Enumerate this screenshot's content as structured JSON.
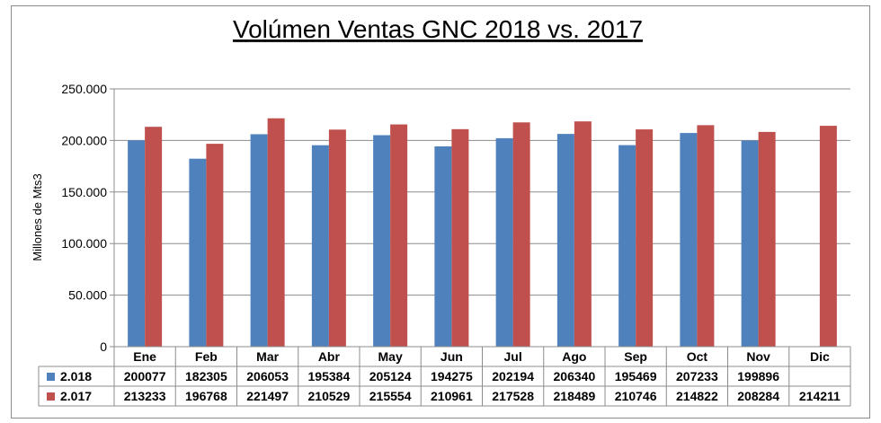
{
  "chart_data": {
    "type": "bar",
    "title": "Volúmen Ventas GNC 2018 vs. 2017",
    "xlabel": "",
    "ylabel": "Millones de Mts3",
    "ylim": [
      0,
      250000
    ],
    "y_ticks": [
      "0",
      "50.000",
      "100.000",
      "150.000",
      "200.000",
      "250.000"
    ],
    "y_tick_values": [
      0,
      50000,
      100000,
      150000,
      200000,
      250000
    ],
    "grid": true,
    "legend": "data-table",
    "categories": [
      "Ene",
      "Feb",
      "Mar",
      "Abr",
      "May",
      "Jun",
      "Jul",
      "Ago",
      "Sep",
      "Oct",
      "Nov",
      "Dic"
    ],
    "series": [
      {
        "name": "2.018",
        "color": "#4f81bd",
        "values": [
          200077,
          182305,
          206053,
          195384,
          205124,
          194275,
          202194,
          206340,
          195469,
          207233,
          199896,
          null
        ],
        "labels": [
          "200077",
          "182305",
          "206053",
          "195384",
          "205124",
          "194275",
          "202194",
          "206340",
          "195469",
          "207233",
          "199896",
          ""
        ]
      },
      {
        "name": "2.017",
        "color": "#c0504d",
        "values": [
          213233,
          196768,
          221497,
          210529,
          215554,
          210961,
          217528,
          218489,
          210746,
          214822,
          208284,
          214211
        ],
        "labels": [
          "213233",
          "196768",
          "221497",
          "210529",
          "215554",
          "210961",
          "217528",
          "218489",
          "210746",
          "214822",
          "208284",
          "214211"
        ]
      }
    ]
  }
}
